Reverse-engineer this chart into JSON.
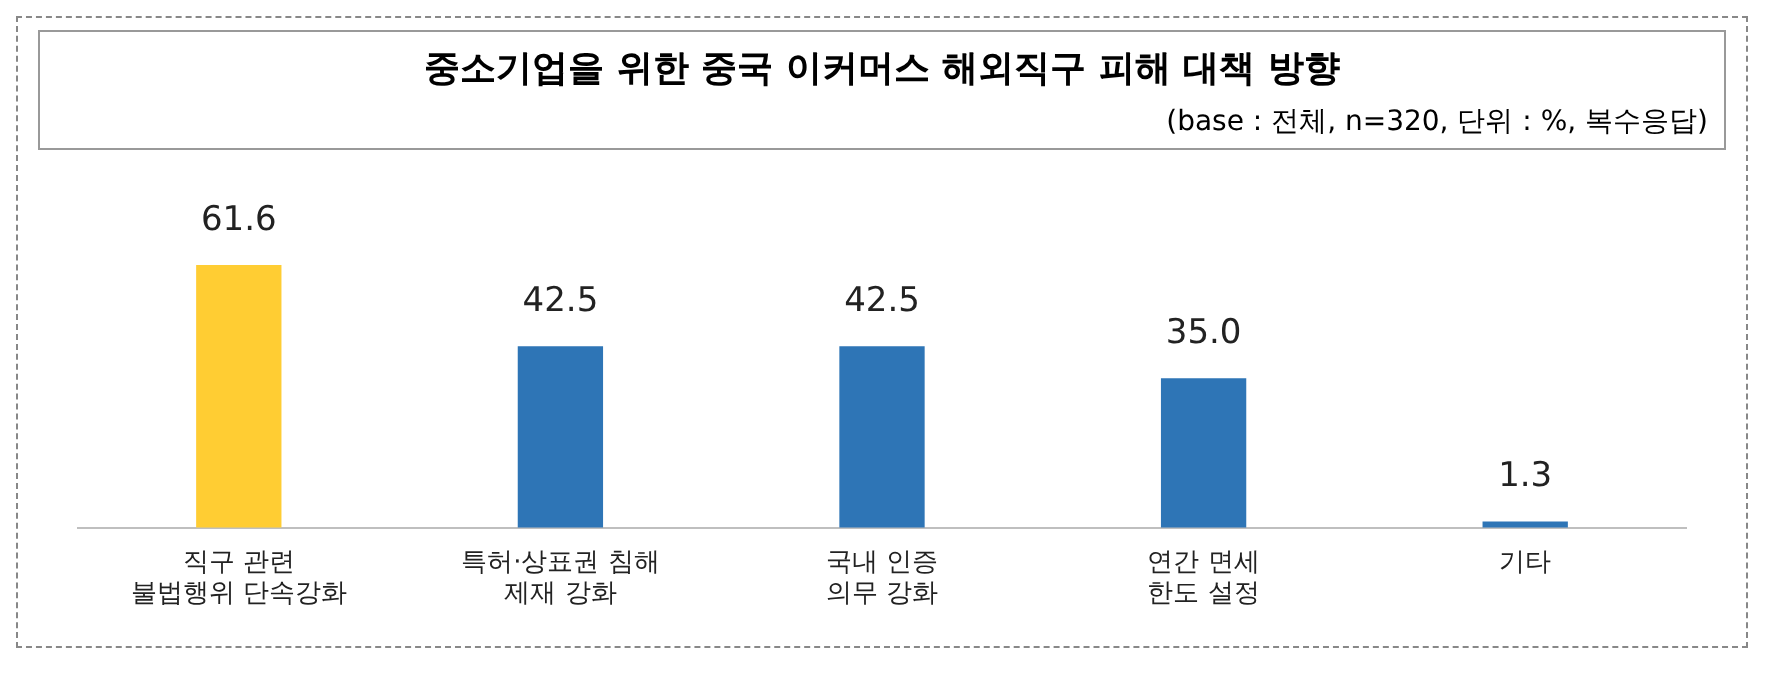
{
  "chart_data": {
    "type": "bar",
    "title": "중소기업을 위한 중국 이커머스 해외직구 피해 대책 방향",
    "subtitle": "(base : 전체, n=320, 단위 : %, 복수응답)",
    "categories": [
      "직구 관련\n불법행위 단속강화",
      "특허·상표권 침해\n제재 강화",
      "국내 인증\n의무 강화",
      "연간 면세\n한도 설정",
      "기타"
    ],
    "values": [
      61.6,
      42.5,
      42.5,
      35.0,
      1.3
    ],
    "colors": [
      "#ffcd33",
      "#2e75b6",
      "#2e75b6",
      "#2e75b6",
      "#2e75b6"
    ],
    "value_labels": [
      "61.6",
      "42.5",
      "42.5",
      "35.0",
      "1.3"
    ],
    "grid": false,
    "legend": false
  }
}
